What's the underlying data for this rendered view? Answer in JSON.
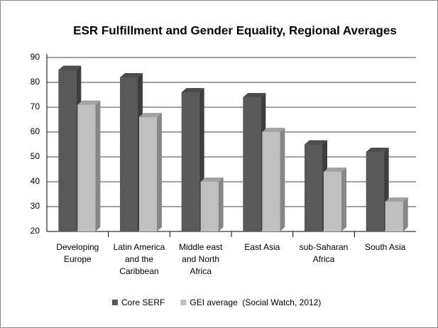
{
  "chart_data": {
    "type": "bar3d",
    "title": "ESR Fulfillment and Gender Equality, Regional Averages",
    "categories": [
      "Developing Europe",
      "Latin America and the Caribbean",
      "Middle east and North Africa",
      "East Asia",
      "sub-Saharan Africa",
      "South Asia"
    ],
    "series": [
      {
        "name": "Core SERF",
        "color": "#595959",
        "values": [
          85,
          82,
          76,
          74,
          55,
          52
        ]
      },
      {
        "name": "GEI average  (Social Watch, 2012)",
        "color": "#bfbfbf",
        "values": [
          71,
          66,
          40,
          60,
          44,
          32
        ]
      }
    ],
    "ylim": [
      20,
      90
    ],
    "yticks": [
      20,
      30,
      40,
      50,
      60,
      70,
      80,
      90
    ],
    "grid": true,
    "legend": "bottom"
  }
}
